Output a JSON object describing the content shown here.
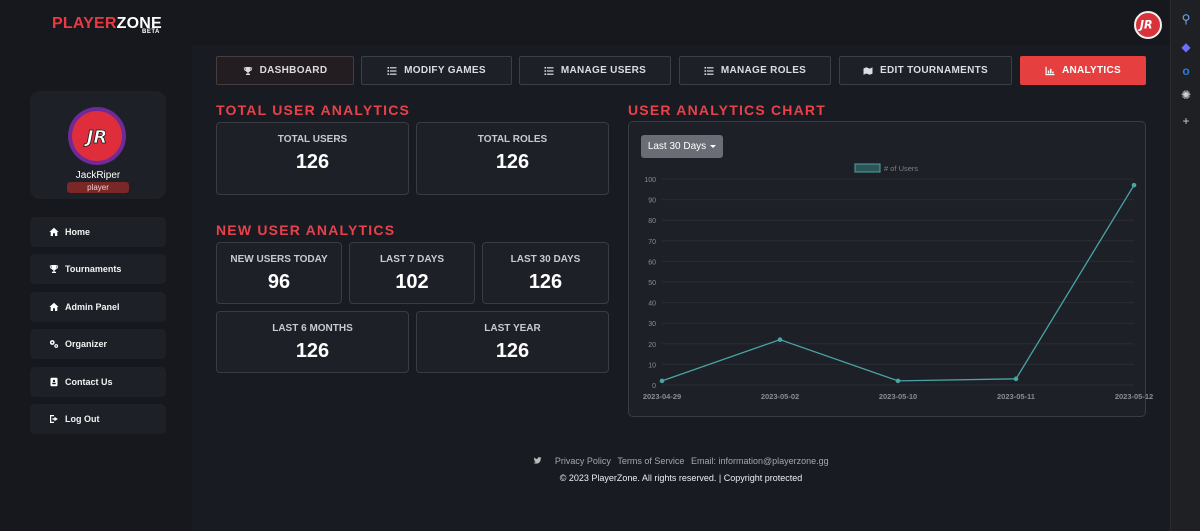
{
  "brand": {
    "part1": "PLAYER",
    "part2": "ZONE",
    "badge": "BETA"
  },
  "profile": {
    "name": "JackRiper",
    "role": "player"
  },
  "sidebar": {
    "items": [
      {
        "label": "Home",
        "icon": "home-icon"
      },
      {
        "label": "Tournaments",
        "icon": "trophy-icon"
      },
      {
        "label": "Admin Panel",
        "icon": "home-icon"
      },
      {
        "label": "Organizer",
        "icon": "gears-icon"
      },
      {
        "label": "Contact Us",
        "icon": "contact-book-icon"
      },
      {
        "label": "Log Out",
        "icon": "logout-icon"
      }
    ]
  },
  "tabs": [
    {
      "label": "DASHBOARD",
      "icon": "trophy-icon"
    },
    {
      "label": "MODIFY GAMES",
      "icon": "list-icon"
    },
    {
      "label": "MANAGE USERS",
      "icon": "list-icon"
    },
    {
      "label": "MANAGE ROLES",
      "icon": "list-icon"
    },
    {
      "label": "EDIT TOURNAMENTS",
      "icon": "map-icon"
    },
    {
      "label": "ANALYTICS",
      "icon": "chart-icon"
    }
  ],
  "total": {
    "title": "TOTAL USER ANALYTICS",
    "users_label": "TOTAL USERS",
    "users_value": "126",
    "roles_label": "TOTAL ROLES",
    "roles_value": "126"
  },
  "new_users": {
    "title": "NEW USER ANALYTICS",
    "today_label": "NEW USERS TODAY",
    "today_value": "96",
    "d7_label": "LAST 7 DAYS",
    "d7_value": "102",
    "d30_label": "LAST 30 DAYS",
    "d30_value": "126",
    "m6_label": "LAST 6 MONTHS",
    "m6_value": "126",
    "y1_label": "LAST YEAR",
    "y1_value": "126"
  },
  "chart": {
    "title": "USER ANALYTICS CHART",
    "range_label": "Last 30 Days"
  },
  "chart_data": {
    "type": "line",
    "x": [
      "2023-04-29",
      "2023-05-02",
      "2023-05-10",
      "2023-05-11",
      "2023-05-12"
    ],
    "series": [
      {
        "name": "# of Users",
        "values": [
          2,
          22,
          2,
          3,
          97
        ]
      }
    ],
    "yticks": [
      "0",
      "10",
      "20",
      "30",
      "40",
      "50",
      "60",
      "70",
      "80",
      "90",
      "100"
    ],
    "ylim": [
      0,
      100
    ],
    "legend": "top-center",
    "color": "#4aa3a4"
  },
  "footer": {
    "privacy": "Privacy Policy",
    "terms": "Terms of Service",
    "email": "Email: information@playerzone.gg",
    "copyright": "© 2023 PlayerZone. All rights reserved. | Copyright protected"
  }
}
